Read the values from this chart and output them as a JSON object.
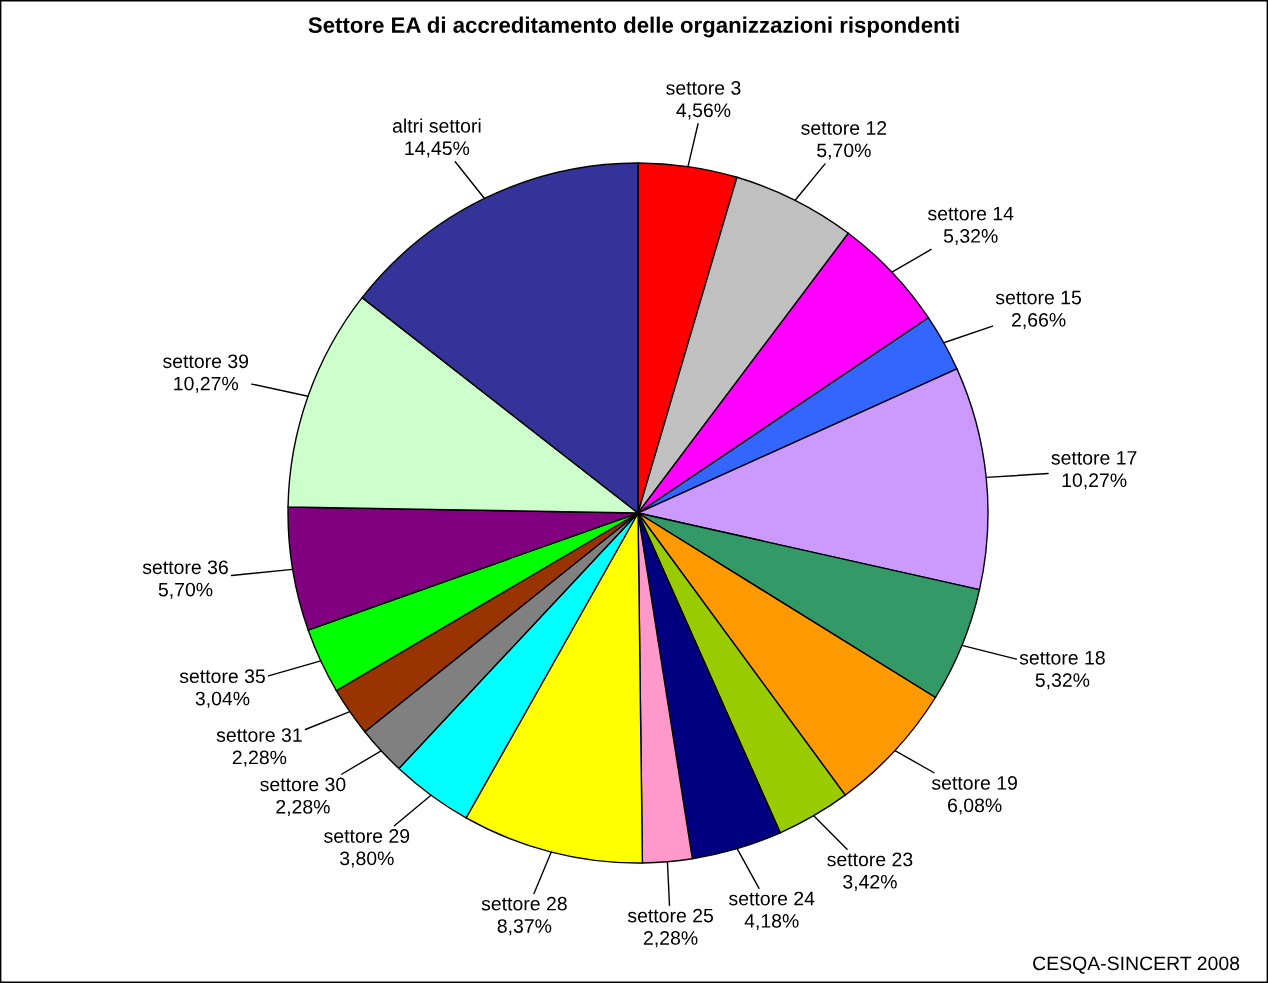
{
  "chart_data": {
    "type": "pie",
    "title": "Settore EA di accreditamento delle organizzazioni rispondenti",
    "categories": [
      "settore 3",
      "settore 12",
      "settore 14",
      "settore 15",
      "settore 17",
      "settore 18",
      "settore 19",
      "settore 23",
      "settore 24",
      "settore 25",
      "settore 28",
      "settore 29",
      "settore 30",
      "settore 31",
      "settore 35",
      "settore 36",
      "settore 39",
      "altri settori"
    ],
    "values": [
      4.56,
      5.7,
      5.32,
      2.66,
      10.27,
      5.32,
      6.08,
      3.42,
      4.18,
      2.28,
      8.37,
      3.8,
      2.28,
      2.28,
      3.04,
      5.7,
      10.27,
      14.45
    ],
    "value_labels": [
      "4,56%",
      "5,70%",
      "5,32%",
      "2,66%",
      "10,27%",
      "5,32%",
      "6,08%",
      "3,42%",
      "4,18%",
      "2,28%",
      "8,37%",
      "3,80%",
      "2,28%",
      "2,28%",
      "3,04%",
      "5,70%",
      "10,27%",
      "14,45%"
    ],
    "colors": [
      "#ff0000",
      "#c0c0c0",
      "#ff00ff",
      "#3366ff",
      "#cc99ff",
      "#339966",
      "#ff9900",
      "#99cc00",
      "#000080",
      "#ff99cc",
      "#ffff00",
      "#00ffff",
      "#808080",
      "#993300",
      "#00ff00",
      "#800080",
      "#ccffcc",
      "#333399"
    ],
    "annotations": [
      "CESQA-SINCERT 2008"
    ]
  }
}
